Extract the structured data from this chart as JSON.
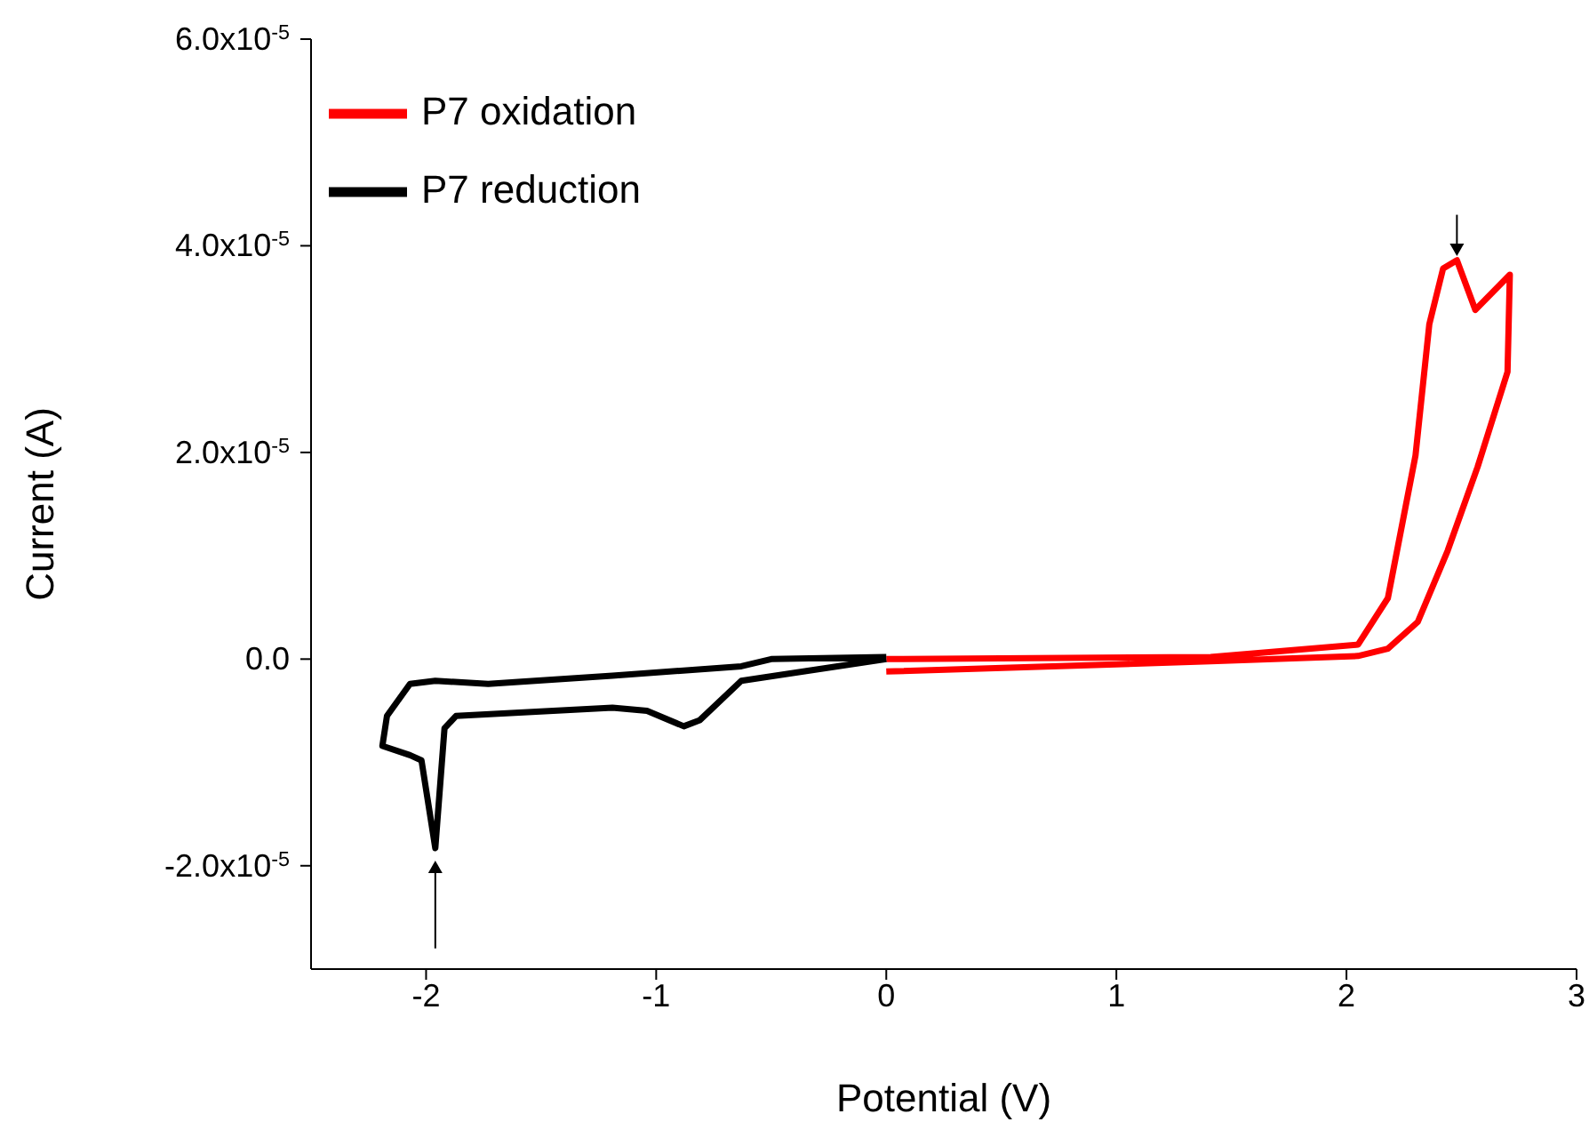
{
  "chart_data": {
    "type": "line",
    "xlabel": "Potential (V)",
    "ylabel": "Current (A)",
    "xlim": [
      -2.5,
      3
    ],
    "xticks": [
      -2,
      -1,
      0,
      1,
      2,
      3
    ],
    "ylim": [
      -3e-05,
      6e-05
    ],
    "yticks": [
      {
        "value": -2e-05,
        "label": "-2.0x10$^{-5}$"
      },
      {
        "value": 0,
        "label": "0.0"
      },
      {
        "value": 2e-05,
        "label": "2.0x10$^{-5}$"
      },
      {
        "value": 4e-05,
        "label": "4.0x10$^{-5}$"
      },
      {
        "value": 6e-05,
        "label": "6.0x10$^{-5}$"
      }
    ],
    "legend": "top left",
    "marker": "none",
    "line_style": "solid",
    "series": [
      {
        "name": "P7 oxidation",
        "color": "#ff0000",
        "x": [
          0,
          1,
          1.41,
          2.05,
          2.18,
          2.31,
          2.44,
          2.57,
          2.7,
          2.71,
          2.56,
          2.48,
          2.42,
          2.36,
          2.3,
          2.18,
          2.05,
          1.41,
          0
        ],
        "values": [
          -1.2e-06,
          -5e-07,
          -2e-07,
          3e-07,
          1e-06,
          3.6e-06,
          1.05e-05,
          1.86e-05,
          2.78e-05,
          3.72e-05,
          3.38e-05,
          3.86e-05,
          3.78e-05,
          3.24e-05,
          1.97e-05,
          5.9e-06,
          1.4e-06,
          2e-07,
          0
        ]
      },
      {
        "name": "P7 reduction",
        "color": "#000000",
        "x": [
          0,
          -0.5,
          -0.63,
          -1.19,
          -1.73,
          -1.96,
          -2.07,
          -2.17,
          -2.19,
          -2.07,
          -2.02,
          -1.96,
          -1.92,
          -1.87,
          -1.19,
          -1.04,
          -0.88,
          -0.81,
          -0.63,
          0
        ],
        "values": [
          2e-07,
          0,
          -7e-07,
          -1.6e-06,
          -2.4e-06,
          -2.1e-06,
          -2.4e-06,
          -5.5e-06,
          -8.4e-06,
          -9.3e-06,
          -9.8e-06,
          -1.83e-05,
          -6.7e-06,
          -5.5e-06,
          -4.7e-06,
          -5e-06,
          -6.5e-06,
          -5.9e-06,
          -2.1e-06,
          0
        ]
      }
    ]
  }
}
